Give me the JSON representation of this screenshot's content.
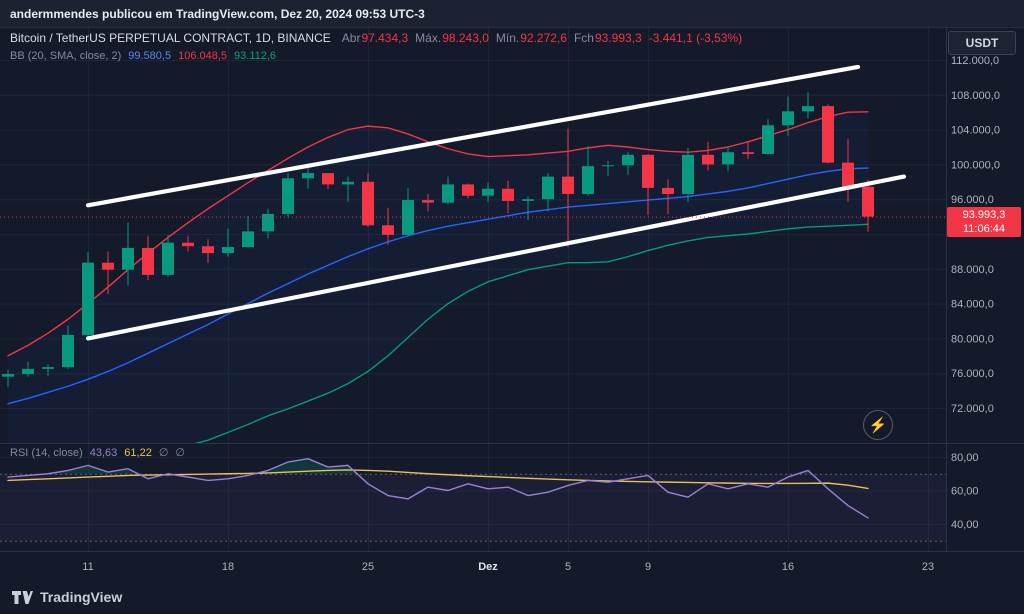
{
  "meta": {
    "attribution": "andermmendes publicou em TradingView.com, Dez 20, 2024 09:53 UTC-3"
  },
  "header": {
    "symbol": "Bitcoin / TetherUS PERPETUAL CONTRACT, 1D, BINANCE",
    "ohlc": {
      "abr_label": "Abr",
      "abr": "97.434,3",
      "max_label": "Máx.",
      "max": "98.243,0",
      "min_label": "Mín.",
      "min": "92.272,6",
      "fch_label": "Fch",
      "fch": "93.993,3",
      "change": "-3.441,1 (-3,53%)"
    },
    "bb": {
      "label": "BB (20, SMA, close, 2)",
      "basis": "99.580,5",
      "upper": "106.048,5",
      "lower": "93.112,6"
    }
  },
  "rsi_legend": {
    "label": "RSI (14, close)",
    "value": "43,63",
    "ma": "61,22",
    "extra1": "∅",
    "extra2": "∅"
  },
  "currency_button": "USDT",
  "price_label": {
    "price": "93.993,3",
    "countdown": "11:06:44"
  },
  "logo": "TradingView",
  "icons": {
    "lightning": "⚡"
  },
  "colors": {
    "bg": "#141a29",
    "topbar_bg": "#1b2231",
    "grid": "#1e2636",
    "sep": "#2a3245",
    "text": "#aeb3c0",
    "text_bright": "#dfe3ee",
    "up": "#089981",
    "down": "#f23645",
    "bb_upper": "#f23645",
    "bb_basis": "#2962ff",
    "bb_lower": "#089981",
    "bb_fill": "rgba(41,98,255,0.05)",
    "rsi_line": "#9c7fd4",
    "rsi_ma": "#e7c15a",
    "rsi_level": "#5a6175",
    "rsi_band": "rgba(126,87,194,0.07)",
    "rsi_over_fill": "rgba(8,153,129,0.22)",
    "channel": "#ffffff"
  },
  "chart_data": {
    "type": "candlestick",
    "title": "Bitcoin / TetherUS PERPETUAL CONTRACT, 1D, BINANCE",
    "interval": "1D",
    "values_in": "thousands of USDT",
    "candles": [
      [
        75.6,
        76.4,
        74.4,
        75.9
      ],
      [
        75.9,
        77.3,
        75.6,
        76.5
      ],
      [
        76.5,
        77.0,
        75.7,
        76.7
      ],
      [
        76.7,
        81.5,
        76.5,
        80.4
      ],
      [
        80.4,
        89.9,
        80.2,
        88.7
      ],
      [
        88.7,
        90.0,
        85.1,
        87.9
      ],
      [
        87.9,
        93.3,
        86.1,
        90.4
      ],
      [
        90.4,
        91.8,
        86.7,
        87.3
      ],
      [
        87.3,
        91.9,
        87.1,
        91.0
      ],
      [
        91.0,
        91.8,
        90.0,
        90.6
      ],
      [
        90.6,
        91.4,
        88.7,
        89.8
      ],
      [
        89.8,
        92.6,
        89.4,
        90.5
      ],
      [
        90.5,
        94.1,
        90.4,
        92.3
      ],
      [
        92.3,
        94.9,
        91.5,
        94.3
      ],
      [
        94.3,
        99.0,
        94.0,
        98.4
      ],
      [
        98.4,
        99.6,
        97.2,
        99.0
      ],
      [
        99.0,
        99.0,
        97.2,
        97.7
      ],
      [
        97.7,
        98.6,
        95.7,
        98.0
      ],
      [
        98.0,
        99.0,
        92.8,
        93.0
      ],
      [
        93.0,
        95.0,
        90.8,
        91.9
      ],
      [
        91.9,
        97.3,
        91.8,
        95.9
      ],
      [
        95.9,
        96.6,
        94.6,
        95.6
      ],
      [
        95.6,
        98.6,
        95.4,
        97.7
      ],
      [
        97.7,
        97.8,
        96.1,
        96.4
      ],
      [
        96.4,
        97.9,
        95.7,
        97.2
      ],
      [
        97.2,
        98.1,
        94.4,
        95.8
      ],
      [
        95.8,
        96.3,
        93.6,
        96.0
      ],
      [
        96.0,
        99.0,
        94.6,
        98.6
      ],
      [
        98.6,
        104.1,
        90.5,
        96.6
      ],
      [
        96.6,
        102.1,
        96.4,
        99.8
      ],
      [
        99.8,
        100.4,
        98.7,
        99.9
      ],
      [
        99.9,
        101.4,
        98.8,
        101.1
      ],
      [
        101.1,
        101.2,
        94.2,
        97.3
      ],
      [
        97.3,
        98.3,
        94.3,
        96.6
      ],
      [
        96.6,
        101.9,
        95.7,
        101.1
      ],
      [
        101.1,
        102.6,
        99.3,
        100.0
      ],
      [
        100.0,
        102.0,
        99.2,
        101.4
      ],
      [
        101.4,
        102.7,
        100.6,
        101.2
      ],
      [
        101.2,
        105.2,
        101.1,
        104.5
      ],
      [
        104.5,
        107.8,
        103.3,
        106.1
      ],
      [
        106.1,
        108.3,
        105.3,
        106.7
      ],
      [
        106.7,
        106.9,
        100.1,
        100.2
      ],
      [
        100.2,
        102.9,
        95.7,
        97.4
      ],
      [
        97.434,
        98.243,
        92.273,
        93.993
      ]
    ],
    "bb": {
      "basis": [
        72.5,
        73.1,
        73.8,
        74.5,
        75.3,
        76.2,
        77.2,
        78.3,
        79.4,
        80.5,
        81.6,
        82.8,
        84.0,
        85.2,
        86.3,
        87.4,
        88.4,
        89.4,
        90.3,
        91.1,
        91.8,
        92.4,
        92.9,
        93.3,
        93.7,
        94.1,
        94.5,
        94.8,
        95.1,
        95.3,
        95.5,
        95.7,
        95.9,
        96.1,
        96.3,
        96.6,
        96.9,
        97.3,
        97.8,
        98.3,
        98.8,
        99.2,
        99.5,
        99.58
      ],
      "upper": [
        78,
        79.2,
        80.6,
        82.2,
        84,
        85.9,
        87.9,
        89.8,
        91.6,
        93.3,
        94.9,
        96.4,
        97.9,
        99.3,
        100.7,
        102,
        103.1,
        104,
        104.4,
        104.2,
        103.5,
        102.6,
        101.8,
        101.2,
        100.9,
        101,
        101.1,
        101.3,
        101.5,
        101.9,
        102.2,
        102,
        101.7,
        101.5,
        101.4,
        101.6,
        102,
        102.6,
        103.3,
        104,
        104.8,
        105.5,
        106,
        106.05
      ],
      "lower": [
        67,
        67,
        67,
        66.8,
        66.6,
        66.5,
        66.5,
        66.8,
        67.2,
        67.7,
        68.3,
        69.2,
        70.1,
        71.1,
        71.9,
        72.8,
        73.7,
        74.8,
        76.2,
        78,
        80.1,
        82.2,
        84,
        85.4,
        86.5,
        87.2,
        87.9,
        88.3,
        88.7,
        88.7,
        88.8,
        89.4,
        90.1,
        90.7,
        91.2,
        91.6,
        91.8,
        92,
        92.3,
        92.6,
        92.8,
        92.9,
        93,
        93.11
      ]
    },
    "channel": {
      "upper": {
        "i1": 4,
        "p1": 95.3,
        "i2": 42.5,
        "p2": 111.2
      },
      "lower": {
        "i1": 4,
        "p1": 80.0,
        "i2": 44.8,
        "p2": 98.6
      }
    },
    "price_axis": {
      "current_price": 93.9933,
      "grid_levels": [
        112,
        108,
        104,
        100,
        96,
        92,
        88,
        84,
        80,
        76,
        72
      ],
      "ticks": [
        {
          "p": 112,
          "label": "112.000,0"
        },
        {
          "p": 108,
          "label": "108.000,0"
        },
        {
          "p": 104,
          "label": "104.000,0"
        },
        {
          "p": 100,
          "label": "100.000,0"
        },
        {
          "p": 96,
          "label": "96.000,0"
        },
        {
          "p": 88,
          "label": "88.000,0"
        },
        {
          "p": 84,
          "label": "84.000,0"
        },
        {
          "p": 80,
          "label": "80.000,0"
        },
        {
          "p": 76,
          "label": "76.000,0"
        },
        {
          "p": 72,
          "label": "72.000,0"
        }
      ]
    },
    "time_axis": [
      {
        "i": 4,
        "label": "11"
      },
      {
        "i": 11,
        "label": "18"
      },
      {
        "i": 18,
        "label": "25"
      },
      {
        "i": 24,
        "label": "Dez",
        "em": true
      },
      {
        "i": 28,
        "label": "5"
      },
      {
        "i": 32,
        "label": "9"
      },
      {
        "i": 39,
        "label": "16"
      },
      {
        "i": 46,
        "label": "23"
      }
    ],
    "rsi": {
      "values": [
        68,
        69,
        70,
        72,
        75,
        71,
        73,
        67,
        70,
        68,
        66,
        67,
        69,
        72,
        77,
        79,
        74,
        75,
        64,
        57,
        55,
        62,
        60,
        64,
        61,
        62,
        57,
        59,
        63,
        66,
        65,
        67,
        69,
        59,
        56,
        64,
        61,
        64,
        62,
        68,
        72,
        61,
        51,
        43.63
      ],
      "ma": [
        66,
        66.5,
        67,
        67.5,
        68,
        68.5,
        69,
        69.2,
        69.4,
        69.6,
        69.8,
        70,
        70.2,
        70.5,
        71,
        71.5,
        72,
        72.3,
        72,
        71.5,
        70.8,
        70,
        69.4,
        68.8,
        68.3,
        67.8,
        67.3,
        66.8,
        66.4,
        66,
        65.7,
        65.4,
        65.2,
        65,
        64.8,
        64.6,
        64.4,
        64.3,
        64.2,
        64.2,
        64.3,
        64.4,
        63.2,
        61.22
      ],
      "ticks": [
        {
          "v": 80,
          "label": "80,00"
        },
        {
          "v": 60,
          "label": "60,00"
        },
        {
          "v": 40,
          "label": "40,00"
        }
      ],
      "levels": [
        70,
        30
      ]
    }
  }
}
